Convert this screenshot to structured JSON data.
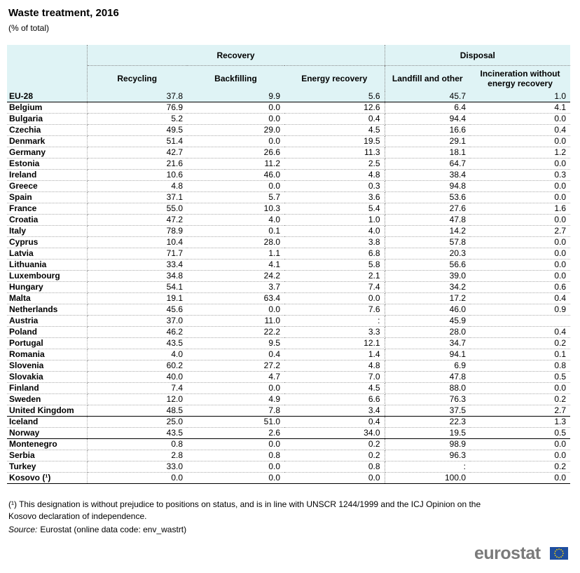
{
  "header": {
    "title": "Waste treatment, 2016",
    "subtitle": "(% of total)"
  },
  "table": {
    "column_groups": [
      "Recovery",
      "Disposal"
    ],
    "columns": [
      "Recycling",
      "Backfilling",
      "Energy recovery",
      "Landfill and other",
      "Incineration without energy recovery"
    ],
    "row_groups": [
      [
        {
          "label": "EU-28",
          "values": [
            "37.8",
            "9.9",
            "5.6",
            "45.7",
            "1.0"
          ]
        }
      ],
      [
        {
          "label": "Belgium",
          "values": [
            "76.9",
            "0.0",
            "12.6",
            "6.4",
            "4.1"
          ]
        },
        {
          "label": "Bulgaria",
          "values": [
            "5.2",
            "0.0",
            "0.4",
            "94.4",
            "0.0"
          ]
        },
        {
          "label": "Czechia",
          "values": [
            "49.5",
            "29.0",
            "4.5",
            "16.6",
            "0.4"
          ]
        },
        {
          "label": "Denmark",
          "values": [
            "51.4",
            "0.0",
            "19.5",
            "29.1",
            "0.0"
          ]
        },
        {
          "label": "Germany",
          "values": [
            "42.7",
            "26.6",
            "11.3",
            "18.1",
            "1.2"
          ]
        },
        {
          "label": "Estonia",
          "values": [
            "21.6",
            "11.2",
            "2.5",
            "64.7",
            "0.0"
          ]
        },
        {
          "label": "Ireland",
          "values": [
            "10.6",
            "46.0",
            "4.8",
            "38.4",
            "0.3"
          ]
        },
        {
          "label": "Greece",
          "values": [
            "4.8",
            "0.0",
            "0.3",
            "94.8",
            "0.0"
          ]
        },
        {
          "label": "Spain",
          "values": [
            "37.1",
            "5.7",
            "3.6",
            "53.6",
            "0.0"
          ]
        },
        {
          "label": "France",
          "values": [
            "55.0",
            "10.3",
            "5.4",
            "27.6",
            "1.6"
          ]
        },
        {
          "label": "Croatia",
          "values": [
            "47.2",
            "4.0",
            "1.0",
            "47.8",
            "0.0"
          ]
        },
        {
          "label": "Italy",
          "values": [
            "78.9",
            "0.1",
            "4.0",
            "14.2",
            "2.7"
          ]
        },
        {
          "label": "Cyprus",
          "values": [
            "10.4",
            "28.0",
            "3.8",
            "57.8",
            "0.0"
          ]
        },
        {
          "label": "Latvia",
          "values": [
            "71.7",
            "1.1",
            "6.8",
            "20.3",
            "0.0"
          ]
        },
        {
          "label": "Lithuania",
          "values": [
            "33.4",
            "4.1",
            "5.8",
            "56.6",
            "0.0"
          ]
        },
        {
          "label": "Luxembourg",
          "values": [
            "34.8",
            "24.2",
            "2.1",
            "39.0",
            "0.0"
          ]
        },
        {
          "label": "Hungary",
          "values": [
            "54.1",
            "3.7",
            "7.4",
            "34.2",
            "0.6"
          ]
        },
        {
          "label": "Malta",
          "values": [
            "19.1",
            "63.4",
            "0.0",
            "17.2",
            "0.4"
          ]
        },
        {
          "label": "Netherlands",
          "values": [
            "45.6",
            "0.0",
            "7.6",
            "46.0",
            "0.9"
          ]
        },
        {
          "label": "Austria",
          "values": [
            "37.0",
            "11.0",
            ":",
            "45.9",
            null
          ]
        },
        {
          "label": "Poland",
          "values": [
            "46.2",
            "22.2",
            "3.3",
            "28.0",
            "0.4"
          ]
        },
        {
          "label": "Portugal",
          "values": [
            "43.5",
            "9.5",
            "12.1",
            "34.7",
            "0.2"
          ]
        },
        {
          "label": "Romania",
          "values": [
            "4.0",
            "0.4",
            "1.4",
            "94.1",
            "0.1"
          ]
        },
        {
          "label": "Slovenia",
          "values": [
            "60.2",
            "27.2",
            "4.8",
            "6.9",
            "0.8"
          ]
        },
        {
          "label": "Slovakia",
          "values": [
            "40.0",
            "4.7",
            "7.0",
            "47.8",
            "0.5"
          ]
        },
        {
          "label": "Finland",
          "values": [
            "7.4",
            "0.0",
            "4.5",
            "88.0",
            "0.0"
          ]
        },
        {
          "label": "Sweden",
          "values": [
            "12.0",
            "4.9",
            "6.6",
            "76.3",
            "0.2"
          ]
        },
        {
          "label": "United Kingdom",
          "values": [
            "48.5",
            "7.8",
            "3.4",
            "37.5",
            "2.7"
          ]
        }
      ],
      [
        {
          "label": "Iceland",
          "values": [
            "25.0",
            "51.0",
            "0.4",
            "22.3",
            "1.3"
          ]
        },
        {
          "label": "Norway",
          "values": [
            "43.5",
            "2.6",
            "34.0",
            "19.5",
            "0.5"
          ]
        }
      ],
      [
        {
          "label": "Montenegro",
          "values": [
            "0.8",
            "0.0",
            "0.2",
            "98.9",
            "0.0"
          ]
        },
        {
          "label": "Serbia",
          "values": [
            "2.8",
            "0.8",
            "0.2",
            "96.3",
            "0.0"
          ]
        },
        {
          "label": "Turkey",
          "values": [
            "33.0",
            "0.0",
            "0.8",
            ":",
            "0.2"
          ]
        },
        {
          "label": "Kosovo (¹)",
          "values": [
            "0.0",
            "0.0",
            "0.0",
            "100.0",
            "0.0"
          ]
        }
      ]
    ]
  },
  "footnote": "(¹) This designation is without prejudice to positions on status, and is in line with UNSCR 1244/1999 and the ICJ Opinion on the Kosovo declaration of independence.",
  "source": {
    "label": "Source:",
    "text": "Eurostat (online data code: env_wastrt)"
  },
  "logo": "eurostat"
}
